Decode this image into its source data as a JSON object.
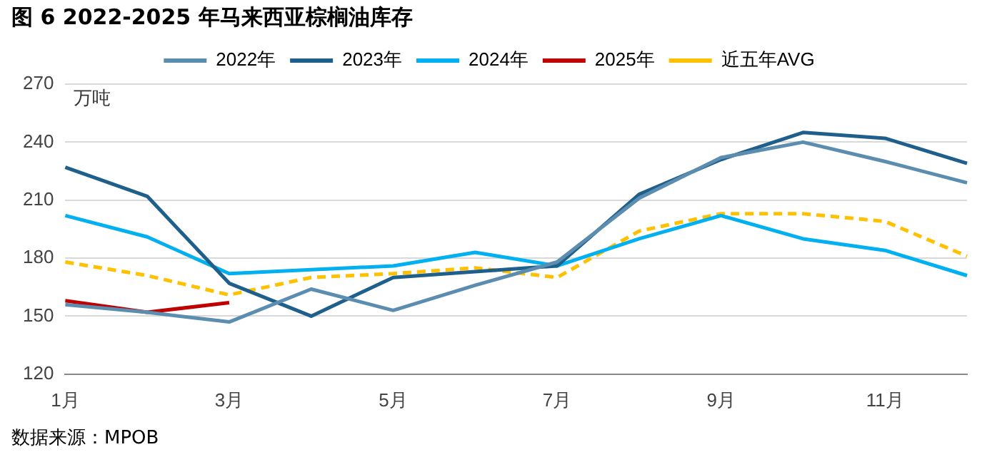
{
  "chart_data": {
    "type": "line",
    "title": "图 6 2022-2025 年马来西亚棕榈油库存",
    "ylabel": "万吨",
    "categories": [
      "1月",
      null,
      "3月",
      null,
      "5月",
      null,
      "7月",
      null,
      "9月",
      null,
      "11月",
      null
    ],
    "series": [
      {
        "name": "2022年",
        "color": "#5b8db0",
        "values": [
          156,
          152,
          147,
          164,
          153,
          166,
          178,
          211,
          232,
          240,
          230,
          219
        ]
      },
      {
        "name": "2023年",
        "color": "#1f5f8b",
        "values": [
          227,
          212,
          167,
          150,
          170,
          173,
          176,
          213,
          231,
          245,
          242,
          229
        ]
      },
      {
        "name": "2024年",
        "color": "#00b0f0",
        "values": [
          202,
          191,
          172,
          174,
          176,
          183,
          176,
          190,
          202,
          190,
          184,
          171
        ]
      },
      {
        "name": "2025年",
        "color": "#c00000",
        "values": [
          158,
          152,
          157,
          null,
          null,
          null,
          null,
          null,
          null,
          null,
          null,
          null
        ]
      },
      {
        "name": "近五年AVG",
        "color": "#ffc000",
        "line_style": "dashed",
        "values": [
          178,
          171,
          161,
          170,
          172,
          175,
          170,
          194,
          203,
          203,
          199,
          181
        ]
      }
    ],
    "ylim": [
      120,
      270
    ],
    "yticks": [
      120,
      150,
      180,
      210,
      240,
      270
    ],
    "grid": "y",
    "legend": "top",
    "marker": "none",
    "annotations": [
      "数据来源：MPOB"
    ]
  }
}
